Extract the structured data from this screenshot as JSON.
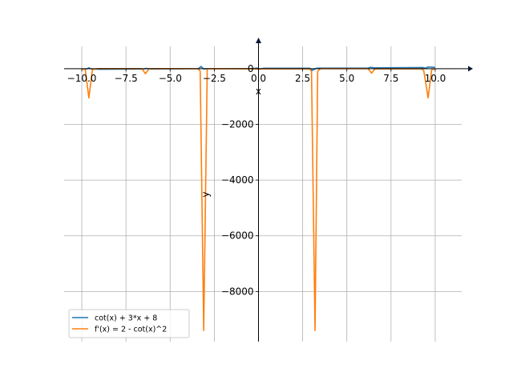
{
  "chart_data": {
    "type": "line",
    "xlabel": "x",
    "ylabel": "y",
    "xlim": [
      -11.0,
      11.5
    ],
    "ylim": [
      -9800,
      800
    ],
    "grid": true,
    "legend_position": "lower-left",
    "x_ticks": [
      -10.0,
      -7.5,
      -5.0,
      -2.5,
      0.0,
      2.5,
      5.0,
      7.5,
      10.0
    ],
    "x_tick_labels": [
      "−10.0",
      "−7.5",
      "−5.0",
      "−2.5",
      "0.0",
      "2.5",
      "5.0",
      "7.5",
      "10.0"
    ],
    "y_ticks": [
      0,
      -2000,
      -4000,
      -6000,
      -8000
    ],
    "y_tick_labels": [
      "0",
      "−2000",
      "−4000",
      "−6000",
      "−8000"
    ],
    "series": [
      {
        "name": "cot(x) + 3*x + 8",
        "color": "#1f77b4",
        "x": [
          -10.0,
          -9.7,
          -9.6,
          -9.45,
          -9.3,
          -9.0,
          -6.5,
          -6.35,
          -6.2,
          -6.0,
          -3.4,
          -3.25,
          -3.1,
          -2.9,
          -0.3,
          -0.1,
          0.1,
          0.3,
          2.9,
          3.05,
          3.25,
          3.4,
          6.2,
          6.35,
          6.55,
          9.3,
          9.45,
          9.6,
          9.8,
          10.0
        ],
        "y": [
          -15,
          -5,
          30,
          -10,
          -15,
          -20,
          -10,
          10,
          -5,
          -10,
          0,
          80,
          -10,
          0,
          5,
          20,
          -10,
          15,
          15,
          -60,
          10,
          20,
          20,
          50,
          30,
          40,
          15,
          60,
          55,
          45
        ]
      },
      {
        "name": "f'(x) = 2 - cot(x)^2",
        "color": "#ff7f0e",
        "x": [
          -10.0,
          -9.8,
          -9.6,
          -9.4,
          -9.2,
          -9.0,
          -6.6,
          -6.4,
          -6.2,
          -6.0,
          -3.45,
          -3.3,
          -3.1,
          -2.9,
          -0.3,
          0.3,
          2.9,
          3.0,
          3.2,
          3.35,
          3.5,
          6.2,
          6.4,
          6.6,
          9.2,
          9.35,
          9.6,
          9.8,
          10.0
        ],
        "y": [
          -5,
          -40,
          -1050,
          -40,
          -5,
          0,
          0,
          -180,
          -5,
          0,
          0,
          -80,
          -9400,
          0,
          -5,
          -5,
          -5,
          -100,
          -9400,
          -100,
          0,
          0,
          -160,
          -5,
          -5,
          -60,
          -1050,
          -40,
          -5
        ]
      }
    ]
  }
}
